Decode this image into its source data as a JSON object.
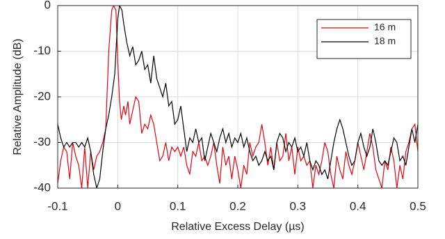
{
  "chart_data": {
    "type": "line",
    "xlabel": "Relative Excess Delay (µs)",
    "ylabel": "Relative Amplitude (dB)",
    "xlim": [
      -0.1,
      0.5
    ],
    "ylim": [
      -40,
      0
    ],
    "xticks": [
      -0.1,
      0,
      0.1,
      0.2,
      0.3,
      0.4,
      0.5
    ],
    "yticks": [
      -40,
      -30,
      -20,
      -10,
      0
    ],
    "grid": true,
    "legend": "upper right",
    "series": [
      {
        "name": "16 m",
        "color": "#e8000b",
        "x": [
          -0.1,
          -0.095,
          -0.09,
          -0.085,
          -0.08,
          -0.075,
          -0.07,
          -0.065,
          -0.06,
          -0.055,
          -0.05,
          -0.045,
          -0.04,
          -0.035,
          -0.03,
          -0.025,
          -0.02,
          -0.015,
          -0.01,
          -0.007,
          -0.003,
          0,
          0.003,
          0.006,
          0.01,
          0.013,
          0.017,
          0.02,
          0.025,
          0.03,
          0.035,
          0.04,
          0.045,
          0.05,
          0.055,
          0.06,
          0.065,
          0.07,
          0.075,
          0.08,
          0.085,
          0.09,
          0.095,
          0.1,
          0.105,
          0.11,
          0.115,
          0.12,
          0.125,
          0.13,
          0.135,
          0.14,
          0.145,
          0.15,
          0.155,
          0.16,
          0.165,
          0.17,
          0.175,
          0.18,
          0.185,
          0.19,
          0.195,
          0.2,
          0.205,
          0.21,
          0.215,
          0.22,
          0.225,
          0.23,
          0.235,
          0.24,
          0.245,
          0.25,
          0.255,
          0.26,
          0.265,
          0.27,
          0.275,
          0.28,
          0.285,
          0.29,
          0.295,
          0.3,
          0.305,
          0.31,
          0.315,
          0.32,
          0.325,
          0.33,
          0.335,
          0.34,
          0.345,
          0.35,
          0.355,
          0.36,
          0.365,
          0.37,
          0.375,
          0.38,
          0.385,
          0.39,
          0.395,
          0.4,
          0.405,
          0.41,
          0.415,
          0.42,
          0.425,
          0.43,
          0.435,
          0.44,
          0.445,
          0.45,
          0.455,
          0.46,
          0.465,
          0.47,
          0.475,
          0.48,
          0.485,
          0.49,
          0.495,
          0.5
        ],
        "values": [
          -39,
          -34,
          -31,
          -32,
          -38,
          -30,
          -33,
          -35,
          -40,
          -31,
          -40,
          -32,
          -36,
          -33,
          -32,
          -30,
          -27,
          -10,
          -1,
          0,
          -1,
          -12,
          -21,
          -25,
          -22,
          -24,
          -21,
          -26,
          -23,
          -20,
          -21,
          -28,
          -26,
          -27,
          -24,
          -26,
          -30,
          -34,
          -33,
          -30,
          -34,
          -31,
          -32,
          -31,
          -33,
          -31,
          -35,
          -37,
          -32,
          -33,
          -30,
          -34,
          -33,
          -35,
          -33,
          -30,
          -35,
          -39,
          -31,
          -35,
          -33,
          -38,
          -33,
          -36,
          -40,
          -35,
          -37,
          -30,
          -33,
          -31,
          -30,
          -26,
          -30,
          -35,
          -31,
          -36,
          -30,
          -34,
          -33,
          -28,
          -34,
          -31,
          -37,
          -31,
          -34,
          -33,
          -35,
          -34,
          -40,
          -35,
          -37,
          -34,
          -30,
          -32,
          -37,
          -40,
          -33,
          -36,
          -38,
          -32,
          -35,
          -37,
          -34,
          -30,
          -33,
          -36,
          -32,
          -28,
          -31,
          -36,
          -38,
          -40,
          -34,
          -36,
          -31,
          -34,
          -40,
          -35,
          -38,
          -32,
          -30,
          -27,
          -26,
          -32
        ]
      },
      {
        "name": "18 m",
        "color": "#000000",
        "x": [
          -0.1,
          -0.095,
          -0.09,
          -0.085,
          -0.08,
          -0.075,
          -0.07,
          -0.065,
          -0.06,
          -0.055,
          -0.05,
          -0.045,
          -0.04,
          -0.035,
          -0.03,
          -0.025,
          -0.02,
          -0.015,
          -0.01,
          -0.005,
          0,
          0.003,
          0.007,
          0.01,
          0.015,
          0.02,
          0.025,
          0.03,
          0.035,
          0.04,
          0.045,
          0.05,
          0.055,
          0.06,
          0.065,
          0.07,
          0.075,
          0.08,
          0.085,
          0.09,
          0.095,
          0.1,
          0.105,
          0.11,
          0.115,
          0.12,
          0.125,
          0.13,
          0.135,
          0.14,
          0.145,
          0.15,
          0.155,
          0.16,
          0.165,
          0.17,
          0.175,
          0.18,
          0.185,
          0.19,
          0.195,
          0.2,
          0.205,
          0.21,
          0.215,
          0.22,
          0.225,
          0.23,
          0.235,
          0.24,
          0.245,
          0.25,
          0.255,
          0.26,
          0.265,
          0.27,
          0.275,
          0.28,
          0.285,
          0.29,
          0.295,
          0.3,
          0.305,
          0.31,
          0.315,
          0.32,
          0.325,
          0.33,
          0.335,
          0.34,
          0.345,
          0.35,
          0.355,
          0.36,
          0.365,
          0.37,
          0.375,
          0.38,
          0.385,
          0.39,
          0.395,
          0.4,
          0.405,
          0.41,
          0.415,
          0.42,
          0.425,
          0.43,
          0.435,
          0.44,
          0.445,
          0.45,
          0.455,
          0.46,
          0.465,
          0.47,
          0.475,
          0.48,
          0.485,
          0.49,
          0.495,
          0.5
        ],
        "values": [
          -26,
          -29,
          -31,
          -30,
          -31,
          -30,
          -30,
          -31,
          -30,
          -31,
          -29,
          -32,
          -37,
          -40,
          -38,
          -32,
          -27,
          -24,
          -20,
          -15,
          -3,
          0,
          -1,
          -4,
          -8,
          -11,
          -9,
          -13,
          -12,
          -10,
          -14,
          -13,
          -17,
          -11,
          -16,
          -18,
          -20,
          -17,
          -22,
          -21,
          -26,
          -25,
          -22,
          -27,
          -32,
          -29,
          -30,
          -27,
          -30,
          -29,
          -34,
          -31,
          -28,
          -30,
          -32,
          -29,
          -27,
          -30,
          -28,
          -31,
          -29,
          -30,
          -28,
          -31,
          -29,
          -32,
          -34,
          -33,
          -35,
          -34,
          -32,
          -34,
          -33,
          -36,
          -30,
          -28,
          -29,
          -32,
          -30,
          -31,
          -29,
          -32,
          -31,
          -33,
          -30,
          -34,
          -36,
          -34,
          -35,
          -37,
          -36,
          -38,
          -34,
          -30,
          -27,
          -25,
          -27,
          -30,
          -33,
          -35,
          -34,
          -30,
          -28,
          -31,
          -33,
          -31,
          -27,
          -30,
          -34,
          -35,
          -34,
          -35,
          -32,
          -29,
          -30,
          -34,
          -33,
          -35,
          -31,
          -27,
          -30,
          -26
        ]
      }
    ]
  }
}
